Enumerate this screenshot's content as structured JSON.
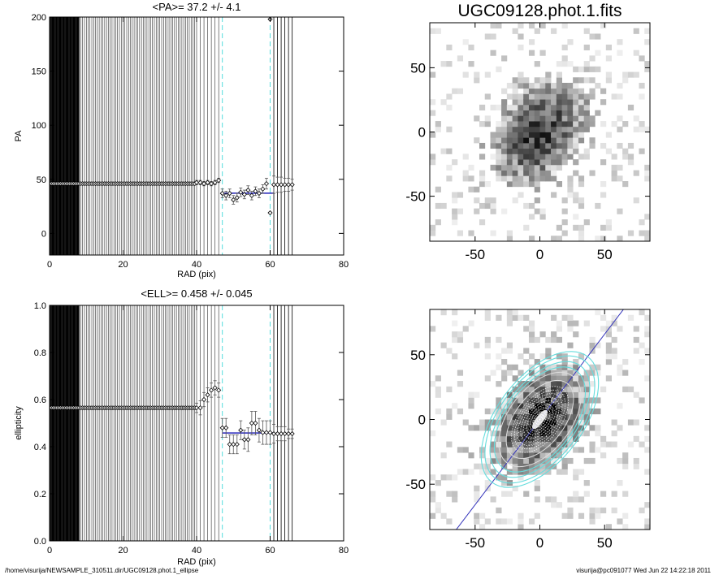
{
  "footer": {
    "path": "/home/visurija/NEWSAMPLE_310511.dir/UGC09128.phot.1_ellipse",
    "stamp": "visurija@pc091077  Wed Jun 22 14:22:18 2011"
  },
  "chart_data": [
    {
      "type": "scatter",
      "title": "<PA>=  37.2 +/-   4.1",
      "xlabel": "RAD (pix)",
      "ylabel": "PA",
      "xlim": [
        0,
        80
      ],
      "ylim": [
        -20,
        200
      ],
      "xticks": [
        0,
        20,
        40,
        60,
        80
      ],
      "yticks": [
        0,
        50,
        100,
        150,
        200
      ],
      "mean_line": {
        "x": [
          47,
          61
        ],
        "y": 37.2
      },
      "fit_range_x": [
        47,
        60
      ],
      "inner_points": {
        "x_start": 0.5,
        "x_end": 39.5,
        "step": 0.5,
        "y": 46
      },
      "points": [
        {
          "x": 40,
          "y": 47,
          "err": 2
        },
        {
          "x": 41,
          "y": 47,
          "err": 2
        },
        {
          "x": 42,
          "y": 46,
          "err": 2
        },
        {
          "x": 43,
          "y": 47,
          "err": 2
        },
        {
          "x": 44,
          "y": 46,
          "err": 2
        },
        {
          "x": 45,
          "y": 47,
          "err": 2
        },
        {
          "x": 46,
          "y": 49,
          "err": 2
        },
        {
          "x": 47,
          "y": 37,
          "err": 4
        },
        {
          "x": 48,
          "y": 35,
          "err": 4
        },
        {
          "x": 49,
          "y": 37,
          "err": 4
        },
        {
          "x": 50,
          "y": 31,
          "err": 4
        },
        {
          "x": 51,
          "y": 33,
          "err": 4
        },
        {
          "x": 52,
          "y": 38,
          "err": 4
        },
        {
          "x": 53,
          "y": 36,
          "err": 4
        },
        {
          "x": 54,
          "y": 40,
          "err": 4
        },
        {
          "x": 55,
          "y": 35,
          "err": 4
        },
        {
          "x": 56,
          "y": 39,
          "err": 4
        },
        {
          "x": 57,
          "y": 37,
          "err": 4
        },
        {
          "x": 58,
          "y": 41,
          "err": 4
        },
        {
          "x": 59,
          "y": 46,
          "err": 5
        },
        {
          "x": 60,
          "y": 19,
          "err": 0
        },
        {
          "x": 60,
          "y": 198,
          "err": 0
        },
        {
          "x": 61,
          "y": 45,
          "err": 8
        },
        {
          "x": 62,
          "y": 45,
          "err": 7
        },
        {
          "x": 63,
          "y": 45,
          "err": 7
        },
        {
          "x": 64,
          "y": 45,
          "err": 6
        },
        {
          "x": 65,
          "y": 45,
          "err": 6
        },
        {
          "x": 66,
          "y": 45,
          "err": 5
        }
      ]
    },
    {
      "type": "scatter",
      "title": "<ELL>= 0.458 +/-  0.045",
      "xlabel": "RAD (pix)",
      "ylabel": "ellipticity",
      "xlim": [
        0,
        80
      ],
      "ylim": [
        0,
        1
      ],
      "xticks": [
        0,
        20,
        40,
        60,
        80
      ],
      "yticks": [
        0.0,
        0.2,
        0.4,
        0.6,
        0.8,
        1.0
      ],
      "mean_line": {
        "x": [
          47,
          61
        ],
        "y": 0.458
      },
      "fit_range_x": [
        47,
        60
      ],
      "inner_points": {
        "x_start": 0.5,
        "x_end": 39.5,
        "step": 0.5,
        "y": 0.565
      },
      "points": [
        {
          "x": 40,
          "y": 0.565,
          "err": 0.02
        },
        {
          "x": 41,
          "y": 0.565,
          "err": 0.03
        },
        {
          "x": 42,
          "y": 0.6,
          "err": 0.03
        },
        {
          "x": 43,
          "y": 0.62,
          "err": 0.03
        },
        {
          "x": 44,
          "y": 0.64,
          "err": 0.03
        },
        {
          "x": 45,
          "y": 0.65,
          "err": 0.03
        },
        {
          "x": 46,
          "y": 0.64,
          "err": 0.03
        },
        {
          "x": 47,
          "y": 0.48,
          "err": 0.04
        },
        {
          "x": 48,
          "y": 0.48,
          "err": 0.04
        },
        {
          "x": 49,
          "y": 0.41,
          "err": 0.04
        },
        {
          "x": 50,
          "y": 0.41,
          "err": 0.04
        },
        {
          "x": 51,
          "y": 0.41,
          "err": 0.04
        },
        {
          "x": 52,
          "y": 0.47,
          "err": 0.04
        },
        {
          "x": 53,
          "y": 0.43,
          "err": 0.04
        },
        {
          "x": 54,
          "y": 0.43,
          "err": 0.05
        },
        {
          "x": 55,
          "y": 0.5,
          "err": 0.05
        },
        {
          "x": 56,
          "y": 0.5,
          "err": 0.05
        },
        {
          "x": 57,
          "y": 0.47,
          "err": 0.05
        },
        {
          "x": 58,
          "y": 0.46,
          "err": 0.05
        },
        {
          "x": 59,
          "y": 0.46,
          "err": 0.05
        },
        {
          "x": 60,
          "y": 0.46,
          "err": 0.05
        },
        {
          "x": 61,
          "y": 0.455,
          "err": 0.04
        },
        {
          "x": 62,
          "y": 0.455,
          "err": 0.03
        },
        {
          "x": 63,
          "y": 0.455,
          "err": 0.03
        },
        {
          "x": 64,
          "y": 0.455,
          "err": 0.03
        },
        {
          "x": 65,
          "y": 0.455,
          "err": 0.02
        },
        {
          "x": 66,
          "y": 0.455,
          "err": 0.02
        }
      ]
    },
    {
      "type": "heatmap",
      "title": "UGC09128.phot.1.fits",
      "xlim": [
        -85,
        85
      ],
      "ylim": [
        -85,
        85
      ],
      "xticks": [
        -50,
        0,
        50
      ],
      "yticks": [
        -50,
        0,
        50
      ],
      "galaxy": {
        "center": [
          0,
          0
        ],
        "pa_deg": 37.2,
        "ell": 0.458,
        "extent": 48
      }
    },
    {
      "type": "heatmap",
      "xlim": [
        -85,
        85
      ],
      "ylim": [
        -85,
        85
      ],
      "xticks": [
        -50,
        0,
        50
      ],
      "yticks": [
        -50,
        0,
        50
      ],
      "galaxy": {
        "center": [
          0,
          0
        ],
        "pa_deg": 37.2,
        "ell": 0.458,
        "extent": 48
      },
      "overlay": {
        "grey_ellipse_axes": [
          [
            42,
            24
          ],
          [
            35,
            19
          ]
        ],
        "cyan_ellipse_axes": [
          [
            47,
            26
          ],
          [
            52,
            28
          ],
          [
            57,
            31
          ],
          [
            61,
            33
          ]
        ],
        "major_axis_line": true
      }
    }
  ]
}
